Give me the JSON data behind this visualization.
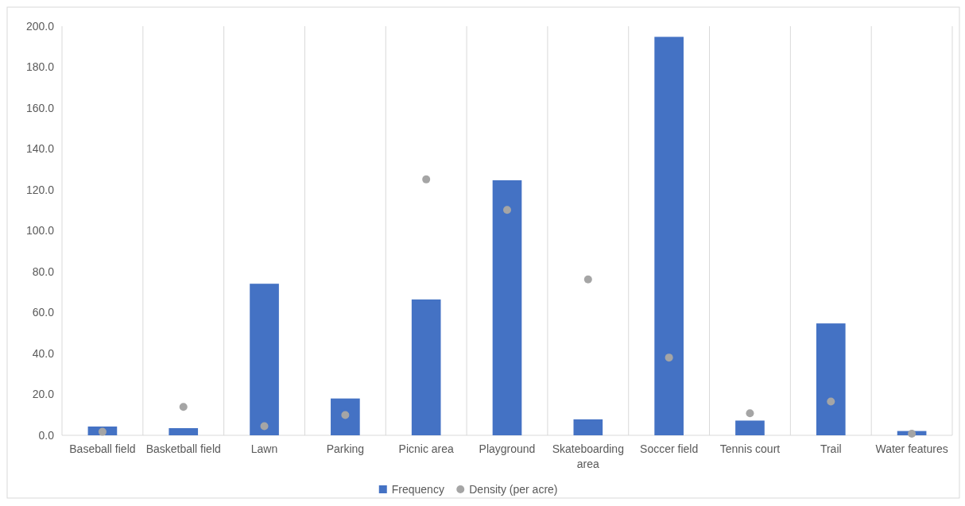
{
  "chart_data": {
    "type": "bar",
    "categories": [
      "Baseball field",
      "Basketball field",
      "Lawn",
      "Parking",
      "Picnic area",
      "Playground",
      "Skateboarding area",
      "Soccer field",
      "Tennis court",
      "Trail",
      "Water features"
    ],
    "series": [
      {
        "name": "Frequency",
        "color": "#4472c4",
        "values": [
          4.3,
          3.5,
          74.1,
          18.0,
          66.4,
          124.7,
          7.8,
          194.8,
          7.2,
          54.7,
          2.1
        ]
      },
      {
        "name": "Density (per acre)",
        "type": "scatter",
        "color": "#a5a5a5",
        "values": [
          1.7,
          13.9,
          4.5,
          9.9,
          125.1,
          110.2,
          76.2,
          38.0,
          10.8,
          16.5,
          0.8
        ]
      }
    ],
    "ylim": [
      0,
      200
    ],
    "yticks": [
      {
        "value": 0,
        "label": "0.0"
      },
      {
        "value": 20,
        "label": "20.0"
      },
      {
        "value": 40,
        "label": "40.0"
      },
      {
        "value": 60,
        "label": "60.0"
      },
      {
        "value": 80,
        "label": "80.0"
      },
      {
        "value": 100,
        "label": "100.0"
      },
      {
        "value": 120,
        "label": "120.0"
      },
      {
        "value": 140,
        "label": "140.0"
      },
      {
        "value": 160,
        "label": "160.0"
      },
      {
        "value": 180,
        "label": "180.0"
      },
      {
        "value": 200,
        "label": "200.0"
      }
    ],
    "grid": "x",
    "legend": "bottom",
    "marker": "circle"
  }
}
